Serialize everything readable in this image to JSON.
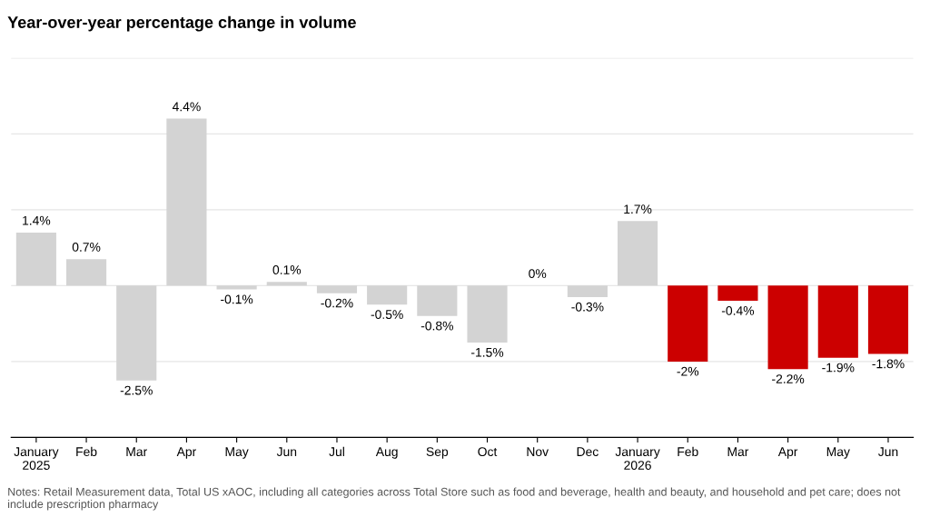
{
  "chart_data": {
    "type": "bar",
    "title": "Year-over-year percentage change in volume",
    "categories": [
      "January\n2025",
      "Feb",
      "Mar",
      "Apr",
      "May",
      "Jun",
      "Jul",
      "Aug",
      "Sep",
      "Oct",
      "Nov",
      "Dec",
      "January\n2026",
      "Feb",
      "Mar",
      "Apr",
      "May",
      "Jun"
    ],
    "values": [
      1.4,
      0.7,
      -2.5,
      4.4,
      -0.1,
      0.1,
      -0.2,
      -0.5,
      -0.8,
      -1.5,
      0,
      -0.3,
      1.7,
      -2,
      -0.4,
      -2.2,
      -1.9,
      -1.8
    ],
    "value_labels": [
      "1.4%",
      "0.7%",
      "-2.5%",
      "4.4%",
      "-0.1%",
      "0.1%",
      "-0.2%",
      "-0.5%",
      "-0.8%",
      "-1.5%",
      "0%",
      "-0.3%",
      "1.7%",
      "-2%",
      "-0.4%",
      "-2.2%",
      "-1.9%",
      "-1.8%"
    ],
    "colors": [
      "#d3d3d3",
      "#d3d3d3",
      "#d3d3d3",
      "#d3d3d3",
      "#d3d3d3",
      "#d3d3d3",
      "#d3d3d3",
      "#d3d3d3",
      "#d3d3d3",
      "#d3d3d3",
      "#d3d3d3",
      "#d3d3d3",
      "#d3d3d3",
      "#cc0000",
      "#cc0000",
      "#cc0000",
      "#cc0000",
      "#cc0000"
    ],
    "ylim": [
      -4,
      6
    ],
    "yticks": [
      {
        "value": -4,
        "label": null
      },
      {
        "value": -2,
        "label": null
      },
      {
        "value": 0,
        "label": null
      },
      {
        "value": 2,
        "label": null
      },
      {
        "value": 4,
        "label": null
      },
      {
        "value": 6,
        "label": null
      }
    ],
    "tick_labels": "x",
    "grid": "y",
    "annotations": [
      "Notes: Retail Measurement data, Total US xAOC, including all categories across Total Store such as food and beverage, health and beauty, and household and pet care; does not include prescription pharmacy"
    ]
  }
}
